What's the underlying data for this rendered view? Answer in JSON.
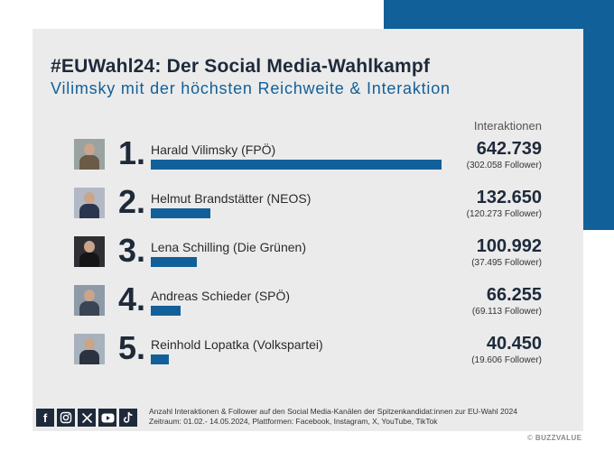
{
  "header": {
    "title": "#EUWahl24: Der Social Media-Wahlkampf",
    "subtitle": "Vilimsky mit der höchsten Reichweite & Interaktion",
    "column_label": "Interaktionen"
  },
  "chart_data": {
    "type": "bar",
    "title": "#EUWahl24: Der Social Media-Wahlkampf",
    "subtitle": "Vilimsky mit der höchsten Reichweite & Interaktion",
    "ylabel": "Interaktionen",
    "categories": [
      "Harald Vilimsky (FPÖ)",
      "Helmut Brandstätter (NEOS)",
      "Lena Schilling (Die Grünen)",
      "Andreas Schieder (SPÖ)",
      "Reinhold Lopatka (Volkspartei)"
    ],
    "series": [
      {
        "name": "Interaktionen",
        "values": [
          642739,
          132650,
          100992,
          66255,
          40450
        ]
      },
      {
        "name": "Follower",
        "values": [
          302058,
          120273,
          37495,
          69113,
          19606
        ]
      }
    ],
    "bar_color": "#12609a"
  },
  "rows": [
    {
      "rank": "1.",
      "name": "Harald Vilimsky (FPÖ)",
      "value": "642.739",
      "followers": "(302.058 Follower)",
      "num": 642739
    },
    {
      "rank": "2.",
      "name": "Helmut Brandstätter (NEOS)",
      "value": "132.650",
      "followers": "(120.273 Follower)",
      "num": 132650
    },
    {
      "rank": "3.",
      "name": "Lena Schilling (Die Grünen)",
      "value": "100.992",
      "followers": "(37.495 Follower)",
      "num": 100992
    },
    {
      "rank": "4.",
      "name": "Andreas Schieder (SPÖ)",
      "value": "66.255",
      "followers": "(69.113 Follower)",
      "num": 66255
    },
    {
      "rank": "5.",
      "name": "Reinhold Lopatka (Volkspartei)",
      "value": "40.450",
      "followers": "(19.606 Follower)",
      "num": 40450
    }
  ],
  "footer": {
    "line1": "Anzahl Interaktionen & Follower auf den Social Media-Kanälen der Spitzenkandidat:innen zur EU-Wahl 2024",
    "line2": "Zeitraum: 01.02.- 14.05.2024, Plattformen: Facebook, Instagram, X, YouTube, TikTok",
    "icons": [
      "facebook-icon",
      "instagram-icon",
      "x-icon",
      "youtube-icon",
      "tiktok-icon"
    ]
  },
  "credit": {
    "symbol": "©",
    "brand": "BUZZVALUE"
  },
  "colors": {
    "accent": "#12609a",
    "text": "#1e2a3a",
    "card": "#ebebeb"
  }
}
